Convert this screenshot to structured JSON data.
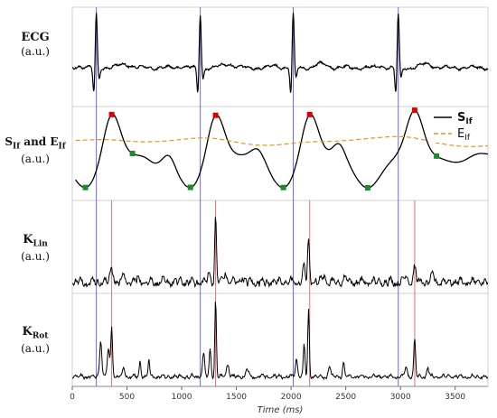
{
  "chart_data": {
    "type": "line",
    "xlabel": "Time (ms)",
    "xlim": [
      0,
      3800
    ],
    "x_ticks": [
      0,
      500,
      1000,
      1500,
      2000,
      2500,
      3000,
      3500
    ],
    "x_tick_labels": [
      "0",
      "500",
      "1000",
      "1500",
      "2000",
      "2500",
      "3000",
      "3500"
    ],
    "r_peaks_ms": [
      220,
      1170,
      2020,
      2980
    ],
    "s_if_max_ms": [
      360,
      1310,
      2170,
      3130
    ],
    "s_if_min_ms": [
      120,
      550,
      1080,
      1930,
      2700,
      3330
    ],
    "panels": [
      {
        "id": "ecg",
        "label": "ECG",
        "unit": "(a.u.)"
      },
      {
        "id": "sif",
        "label_html": "S<sub>If</sub> and E<sub>If</sub>",
        "unit": "(a.u.)"
      },
      {
        "id": "klin",
        "label_html": "K<sub>Lin</sub>",
        "unit": "(a.u.)"
      },
      {
        "id": "krot",
        "label_html": "K<sub>Rot</sub>",
        "unit": "(a.u.)"
      }
    ],
    "legend": {
      "placement": "top-right of second panel",
      "entries": [
        {
          "label_html": "S<tspan font-size='9' dy='3'>If</tspan>",
          "style": "solid",
          "color": "#000000"
        },
        {
          "label_html": "E<tspan font-size='9' dy='3'>If</tspan>",
          "style": "dashed",
          "color": "#e8941a"
        }
      ]
    },
    "colors": {
      "signal": "#000000",
      "energy": "#e8941a",
      "r_peak_line": "#6a6ae0",
      "s_if_peak_line": "#e87070",
      "max_marker": "#e00000",
      "min_marker": "#1a8a2a",
      "border": "#d0d0d0"
    },
    "grid": false
  }
}
